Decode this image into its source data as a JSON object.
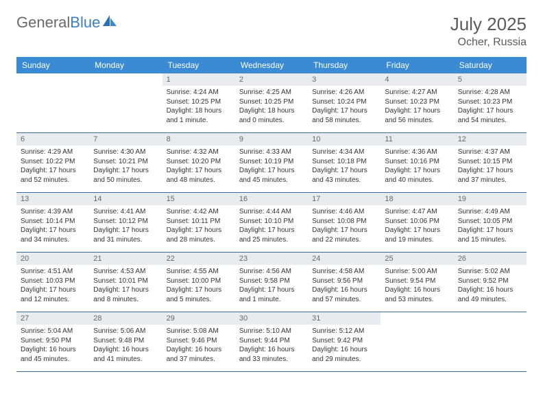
{
  "brand": {
    "part1": "General",
    "part2": "Blue"
  },
  "title": "July 2025",
  "location": "Ocher, Russia",
  "colors": {
    "header_bg": "#3b8bd4",
    "header_text": "#ffffff",
    "daynum_bg": "#e9ecef",
    "daynum_text": "#666666",
    "border": "#3b6a9e",
    "logo_gray": "#6a6a6a",
    "logo_blue": "#3b7fc4"
  },
  "weekdays": [
    "Sunday",
    "Monday",
    "Tuesday",
    "Wednesday",
    "Thursday",
    "Friday",
    "Saturday"
  ],
  "weeks": [
    [
      null,
      null,
      {
        "n": "1",
        "sr": "4:24 AM",
        "ss": "10:25 PM",
        "dl": "18 hours and 1 minute."
      },
      {
        "n": "2",
        "sr": "4:25 AM",
        "ss": "10:25 PM",
        "dl": "18 hours and 0 minutes."
      },
      {
        "n": "3",
        "sr": "4:26 AM",
        "ss": "10:24 PM",
        "dl": "17 hours and 58 minutes."
      },
      {
        "n": "4",
        "sr": "4:27 AM",
        "ss": "10:23 PM",
        "dl": "17 hours and 56 minutes."
      },
      {
        "n": "5",
        "sr": "4:28 AM",
        "ss": "10:23 PM",
        "dl": "17 hours and 54 minutes."
      }
    ],
    [
      {
        "n": "6",
        "sr": "4:29 AM",
        "ss": "10:22 PM",
        "dl": "17 hours and 52 minutes."
      },
      {
        "n": "7",
        "sr": "4:30 AM",
        "ss": "10:21 PM",
        "dl": "17 hours and 50 minutes."
      },
      {
        "n": "8",
        "sr": "4:32 AM",
        "ss": "10:20 PM",
        "dl": "17 hours and 48 minutes."
      },
      {
        "n": "9",
        "sr": "4:33 AM",
        "ss": "10:19 PM",
        "dl": "17 hours and 45 minutes."
      },
      {
        "n": "10",
        "sr": "4:34 AM",
        "ss": "10:18 PM",
        "dl": "17 hours and 43 minutes."
      },
      {
        "n": "11",
        "sr": "4:36 AM",
        "ss": "10:16 PM",
        "dl": "17 hours and 40 minutes."
      },
      {
        "n": "12",
        "sr": "4:37 AM",
        "ss": "10:15 PM",
        "dl": "17 hours and 37 minutes."
      }
    ],
    [
      {
        "n": "13",
        "sr": "4:39 AM",
        "ss": "10:14 PM",
        "dl": "17 hours and 34 minutes."
      },
      {
        "n": "14",
        "sr": "4:41 AM",
        "ss": "10:12 PM",
        "dl": "17 hours and 31 minutes."
      },
      {
        "n": "15",
        "sr": "4:42 AM",
        "ss": "10:11 PM",
        "dl": "17 hours and 28 minutes."
      },
      {
        "n": "16",
        "sr": "4:44 AM",
        "ss": "10:10 PM",
        "dl": "17 hours and 25 minutes."
      },
      {
        "n": "17",
        "sr": "4:46 AM",
        "ss": "10:08 PM",
        "dl": "17 hours and 22 minutes."
      },
      {
        "n": "18",
        "sr": "4:47 AM",
        "ss": "10:06 PM",
        "dl": "17 hours and 19 minutes."
      },
      {
        "n": "19",
        "sr": "4:49 AM",
        "ss": "10:05 PM",
        "dl": "17 hours and 15 minutes."
      }
    ],
    [
      {
        "n": "20",
        "sr": "4:51 AM",
        "ss": "10:03 PM",
        "dl": "17 hours and 12 minutes."
      },
      {
        "n": "21",
        "sr": "4:53 AM",
        "ss": "10:01 PM",
        "dl": "17 hours and 8 minutes."
      },
      {
        "n": "22",
        "sr": "4:55 AM",
        "ss": "10:00 PM",
        "dl": "17 hours and 5 minutes."
      },
      {
        "n": "23",
        "sr": "4:56 AM",
        "ss": "9:58 PM",
        "dl": "17 hours and 1 minute."
      },
      {
        "n": "24",
        "sr": "4:58 AM",
        "ss": "9:56 PM",
        "dl": "16 hours and 57 minutes."
      },
      {
        "n": "25",
        "sr": "5:00 AM",
        "ss": "9:54 PM",
        "dl": "16 hours and 53 minutes."
      },
      {
        "n": "26",
        "sr": "5:02 AM",
        "ss": "9:52 PM",
        "dl": "16 hours and 49 minutes."
      }
    ],
    [
      {
        "n": "27",
        "sr": "5:04 AM",
        "ss": "9:50 PM",
        "dl": "16 hours and 45 minutes."
      },
      {
        "n": "28",
        "sr": "5:06 AM",
        "ss": "9:48 PM",
        "dl": "16 hours and 41 minutes."
      },
      {
        "n": "29",
        "sr": "5:08 AM",
        "ss": "9:46 PM",
        "dl": "16 hours and 37 minutes."
      },
      {
        "n": "30",
        "sr": "5:10 AM",
        "ss": "9:44 PM",
        "dl": "16 hours and 33 minutes."
      },
      {
        "n": "31",
        "sr": "5:12 AM",
        "ss": "9:42 PM",
        "dl": "16 hours and 29 minutes."
      },
      null,
      null
    ]
  ],
  "labels": {
    "sunrise": "Sunrise: ",
    "sunset": "Sunset: ",
    "daylight": "Daylight: "
  }
}
